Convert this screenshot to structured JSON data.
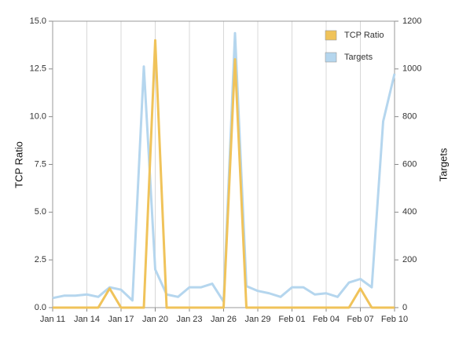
{
  "chart_data": {
    "type": "line",
    "categories": [
      "Jan 11",
      null,
      null,
      "Jan 14",
      null,
      null,
      "Jan 17",
      null,
      null,
      "Jan 20",
      null,
      null,
      "Jan 23",
      null,
      null,
      "Jan 26",
      null,
      null,
      "Jan 29",
      null,
      null,
      "Feb 01",
      null,
      null,
      "Feb 04",
      null,
      null,
      "Feb 07",
      null,
      null,
      "Feb 10"
    ],
    "y_label": "TCP Ratio",
    "y2_label": "Targets",
    "ylim": [
      0,
      15
    ],
    "yticks": [
      {
        "value": 0,
        "label": "0.0"
      },
      {
        "value": 2.5,
        "label": "2.5"
      },
      {
        "value": 5,
        "label": "5.0"
      },
      {
        "value": 7.5,
        "label": "7.5"
      },
      {
        "value": 10,
        "label": "10.0"
      },
      {
        "value": 12.5,
        "label": "12.5"
      },
      {
        "value": 15,
        "label": "15.0"
      }
    ],
    "y2lim": [
      0,
      1200
    ],
    "y2ticks": [
      0,
      200,
      400,
      600,
      800,
      1000,
      1200
    ],
    "grid": true,
    "legend": "top-right",
    "series": [
      {
        "name": "TCP Ratio",
        "color": "#f0c35a",
        "values": [
          0,
          0,
          0,
          0,
          0,
          1.0,
          0,
          0,
          0,
          14,
          0,
          0,
          0,
          0,
          0,
          0,
          13,
          0,
          0,
          0,
          0,
          0,
          0,
          0,
          0,
          0,
          0,
          1.0,
          0,
          0,
          0
        ]
      },
      {
        "name": "Targets",
        "color": "#b5d6ee",
        "axis": "y2",
        "values": [
          40,
          50,
          50,
          55,
          45,
          85,
          75,
          30,
          1010,
          160,
          55,
          45,
          85,
          85,
          100,
          25,
          1150,
          90,
          70,
          60,
          45,
          85,
          85,
          55,
          60,
          45,
          105,
          120,
          85,
          780,
          980
        ]
      }
    ]
  }
}
